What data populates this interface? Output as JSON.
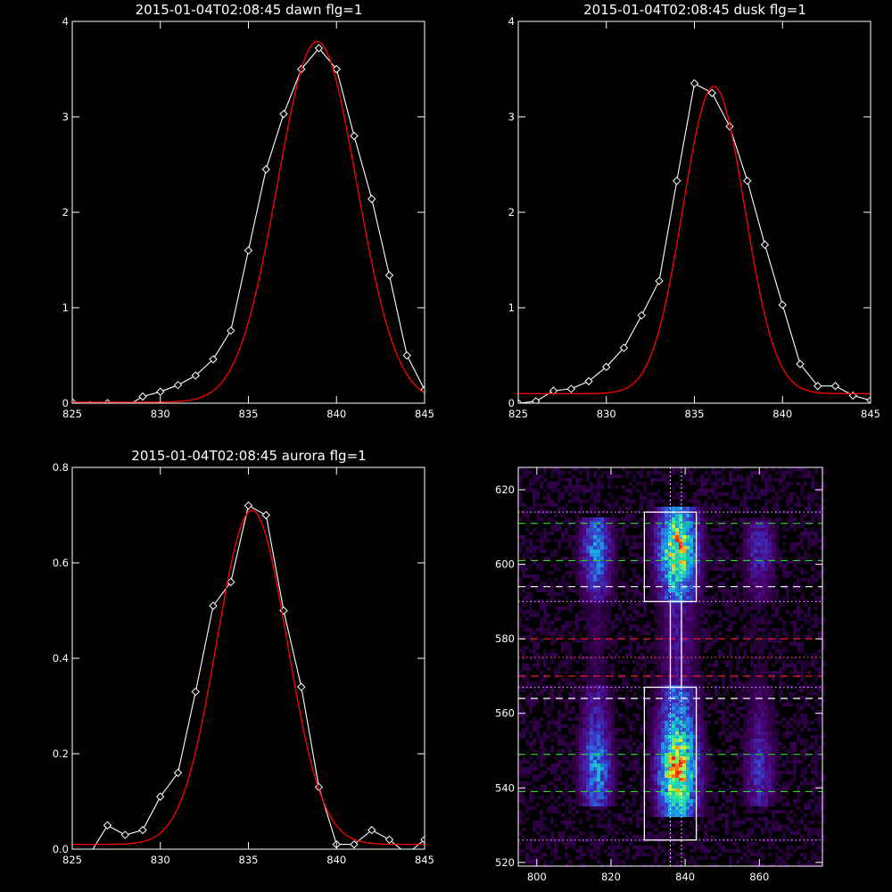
{
  "chart_data": [
    {
      "type": "line",
      "title": "2015-01-04T02:08:45 dawn flg=1",
      "xlim": [
        825,
        845
      ],
      "ylim": [
        0,
        4
      ],
      "xticks": [
        "825",
        "830",
        "835",
        "840",
        "845"
      ],
      "yticks": [
        "0",
        "1",
        "2",
        "3",
        "4"
      ],
      "series": [
        {
          "color": "#ffffff",
          "marker": "diamond",
          "x": [
            825,
            826,
            827,
            828,
            829,
            830,
            831,
            832,
            833,
            834,
            835,
            836,
            837,
            838,
            839,
            840,
            841,
            842,
            843,
            844,
            845
          ],
          "y": [
            0.01,
            -0.02,
            0.0,
            -0.04,
            0.07,
            0.12,
            0.19,
            0.29,
            0.46,
            0.76,
            1.6,
            2.45,
            3.03,
            3.5,
            3.72,
            3.5,
            2.8,
            2.14,
            1.34,
            0.5,
            0.14
          ]
        },
        {
          "color": "#ff0000",
          "fit": "gaussian",
          "amplitude": 3.78,
          "center": 838.9,
          "sigma": 2.25,
          "offset": 0.01,
          "x_range": [
            825,
            845
          ]
        }
      ]
    },
    {
      "type": "line",
      "title": "2015-01-04T02:08:45 dusk flg=1",
      "xlim": [
        825,
        845
      ],
      "ylim": [
        0,
        4
      ],
      "xticks": [
        "825",
        "830",
        "835",
        "840",
        "845"
      ],
      "yticks": [
        "0",
        "1",
        "2",
        "3",
        "4"
      ],
      "series": [
        {
          "color": "#ffffff",
          "marker": "diamond",
          "x": [
            825,
            826,
            827,
            828,
            829,
            830,
            831,
            832,
            833,
            834,
            835,
            836,
            837,
            838,
            839,
            840,
            841,
            842,
            843,
            844,
            845
          ],
          "y": [
            0.0,
            0.02,
            0.13,
            0.15,
            0.23,
            0.38,
            0.58,
            0.92,
            1.28,
            2.33,
            3.35,
            3.25,
            2.9,
            2.33,
            1.66,
            1.03,
            0.41,
            0.18,
            0.18,
            0.08,
            0.03
          ]
        },
        {
          "color": "#ff0000",
          "fit": "gaussian",
          "amplitude": 3.22,
          "center": 836.1,
          "sigma": 1.75,
          "offset": 0.1,
          "x_range": [
            825,
            845
          ]
        }
      ]
    },
    {
      "type": "line",
      "title": "2015-01-04T02:08:45 aurora flg=1",
      "xlim": [
        825,
        845
      ],
      "ylim": [
        0,
        0.8
      ],
      "xticks": [
        "825",
        "830",
        "835",
        "840",
        "845"
      ],
      "yticks": [
        "0.0",
        "0.2",
        "0.4",
        "0.6",
        "0.8"
      ],
      "series": [
        {
          "color": "#ffffff",
          "marker": "diamond",
          "x": [
            826,
            827,
            828,
            829,
            830,
            831,
            832,
            833,
            834,
            835,
            836,
            837,
            838,
            839,
            840,
            841,
            842,
            843,
            844,
            845
          ],
          "y": [
            -0.01,
            0.05,
            0.03,
            0.04,
            0.11,
            0.16,
            0.33,
            0.51,
            0.56,
            0.72,
            0.7,
            0.5,
            0.34,
            0.13,
            0.01,
            0.01,
            0.04,
            0.02,
            -0.01,
            0.02
          ]
        },
        {
          "color": "#ff0000",
          "fit": "gaussian",
          "amplitude": 0.7,
          "center": 835.2,
          "sigma": 2.0,
          "offset": 0.01,
          "x_range": [
            825,
            845
          ]
        }
      ]
    },
    {
      "type": "heatmap",
      "xlim": [
        795,
        877
      ],
      "ylim": [
        519,
        626
      ],
      "xticks": [
        "800",
        "820",
        "840",
        "860"
      ],
      "yticks": [
        "520",
        "540",
        "560",
        "580",
        "600",
        "620"
      ],
      "colormap": [
        "#000000",
        "#4b0070",
        "#3a36c8",
        "#1aa0e8",
        "#22e8a0",
        "#f0f020",
        "#ff2000"
      ],
      "bands": [
        {
          "x_center": 816,
          "width": 8,
          "y_range": [
            535,
            613
          ],
          "peak": 0.55
        },
        {
          "x_center": 838,
          "width": 10,
          "y_range": [
            532,
            615
          ],
          "peak": 1.0
        },
        {
          "x_center": 860,
          "width": 8,
          "y_range": [
            535,
            612
          ],
          "peak": 0.35
        }
      ],
      "boxes": [
        {
          "color": "#ffffff",
          "x_range": [
            829,
            843
          ],
          "y_range": [
            526,
            567
          ]
        },
        {
          "color": "#ffffff",
          "x_range": [
            829,
            843
          ],
          "y_range": [
            590,
            614
          ]
        },
        {
          "color": "#ffffff",
          "x_range": [
            836,
            839
          ],
          "y_range": [
            567,
            590
          ]
        }
      ],
      "hlines": [
        {
          "y": 611,
          "color": "#22dd22",
          "style": "dashed"
        },
        {
          "y": 601,
          "color": "#22dd22",
          "style": "dashed"
        },
        {
          "y": 594,
          "color": "#ffffff",
          "style": "dashed"
        },
        {
          "y": 580,
          "color": "#ff2222",
          "style": "dashed"
        },
        {
          "y": 570,
          "color": "#ff2222",
          "style": "dashed"
        },
        {
          "y": 564,
          "color": "#ffffff",
          "style": "dashed"
        },
        {
          "y": 549,
          "color": "#22dd22",
          "style": "dashed"
        },
        {
          "y": 539,
          "color": "#22dd22",
          "style": "dashed"
        },
        {
          "y": 614,
          "color": "#dd88ff",
          "style": "dotted"
        },
        {
          "y": 590,
          "color": "#dd88ff",
          "style": "dotted"
        },
        {
          "y": 575,
          "color": "#ff6666",
          "style": "dotted"
        },
        {
          "y": 567,
          "color": "#dd88ff",
          "style": "dotted"
        },
        {
          "y": 526,
          "color": "#dd88ff",
          "style": "dotted"
        }
      ],
      "vlines": [
        {
          "x": 836,
          "color": "#ffffff",
          "style": "dotted"
        },
        {
          "x": 839,
          "color": "#ffffff",
          "style": "dotted"
        }
      ]
    }
  ]
}
